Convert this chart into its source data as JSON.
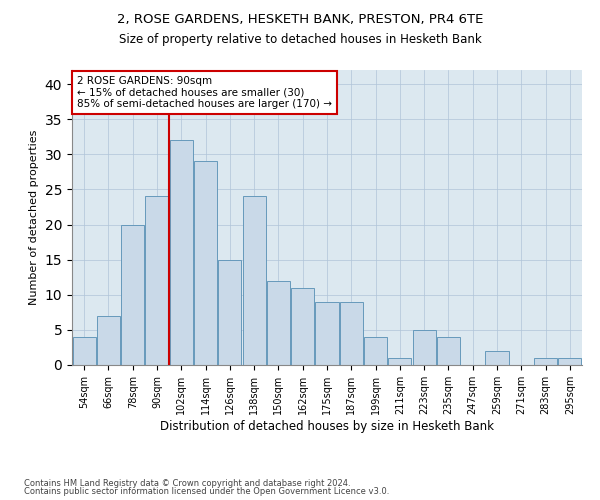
{
  "title1": "2, ROSE GARDENS, HESKETH BANK, PRESTON, PR4 6TE",
  "title2": "Size of property relative to detached houses in Hesketh Bank",
  "xlabel": "Distribution of detached houses by size in Hesketh Bank",
  "ylabel": "Number of detached properties",
  "footnote1": "Contains HM Land Registry data © Crown copyright and database right 2024.",
  "footnote2": "Contains public sector information licensed under the Open Government Licence v3.0.",
  "bin_labels": [
    "54sqm",
    "66sqm",
    "78sqm",
    "90sqm",
    "102sqm",
    "114sqm",
    "126sqm",
    "138sqm",
    "150sqm",
    "162sqm",
    "175sqm",
    "187sqm",
    "199sqm",
    "211sqm",
    "223sqm",
    "235sqm",
    "247sqm",
    "259sqm",
    "271sqm",
    "283sqm",
    "295sqm"
  ],
  "bar_heights": [
    4,
    7,
    20,
    24,
    32,
    29,
    15,
    24,
    12,
    11,
    9,
    9,
    4,
    1,
    5,
    4,
    0,
    2,
    0,
    1,
    1
  ],
  "bar_color": "#c9d9e8",
  "bar_edge_color": "#6699bb",
  "vline_x": 3.5,
  "vline_color": "#cc0000",
  "annotation_text": "2 ROSE GARDENS: 90sqm\n← 15% of detached houses are smaller (30)\n85% of semi-detached houses are larger (170) →",
  "annotation_box_color": "#cc0000",
  "ylim": [
    0,
    42
  ],
  "yticks": [
    0,
    5,
    10,
    15,
    20,
    25,
    30,
    35,
    40
  ],
  "grid_color": "#b0c4d8",
  "background_color": "#dce8f0"
}
